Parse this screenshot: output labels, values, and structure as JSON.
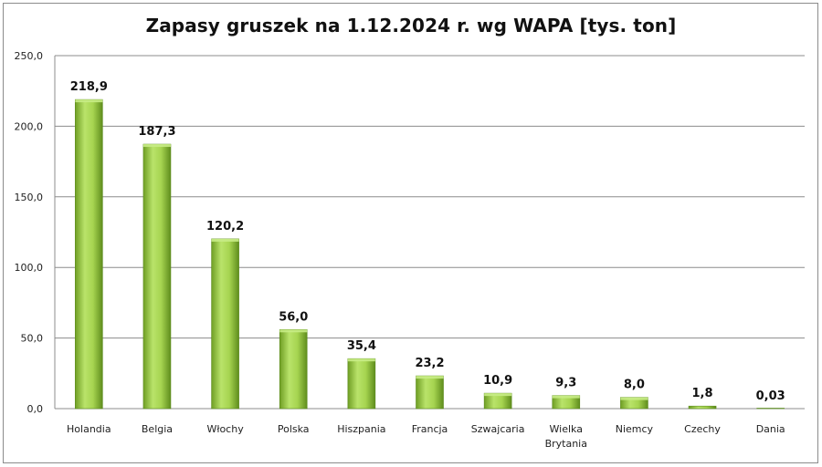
{
  "chart_data": {
    "type": "bar",
    "title": "Zapasy gruszek na 1.12.2024  r. wg WAPA [tys. ton]",
    "xlabel": "",
    "ylabel": "",
    "categories": [
      "Holandia",
      "Belgia",
      "Włochy",
      "Polska",
      "Hiszpania",
      "Francja",
      "Szwajcaria",
      "Wielka Brytania",
      "Niemcy",
      "Czechy",
      "Dania"
    ],
    "values": [
      218.9,
      187.3,
      120.2,
      56.0,
      35.4,
      23.2,
      10.9,
      9.3,
      8.0,
      1.8,
      0.03
    ],
    "data_labels": [
      "218,9",
      "187,3",
      "120,2",
      "56,0",
      "35,4",
      "23,2",
      "10,9",
      "9,3",
      "8,0",
      "1,8",
      "0,03"
    ],
    "y_ticks": [
      0,
      50,
      100,
      150,
      200,
      250
    ],
    "y_tick_labels": [
      "0,0",
      "50,0",
      "100,0",
      "150,0",
      "200,0",
      "250,0"
    ],
    "ylim": [
      0,
      250
    ],
    "grid": true,
    "legend": "none",
    "colors": {
      "bar_light": "#b5e061",
      "bar_mid": "#8fc23a",
      "bar_dark": "#5a8a1c",
      "grid": "#8c8c8c"
    }
  }
}
